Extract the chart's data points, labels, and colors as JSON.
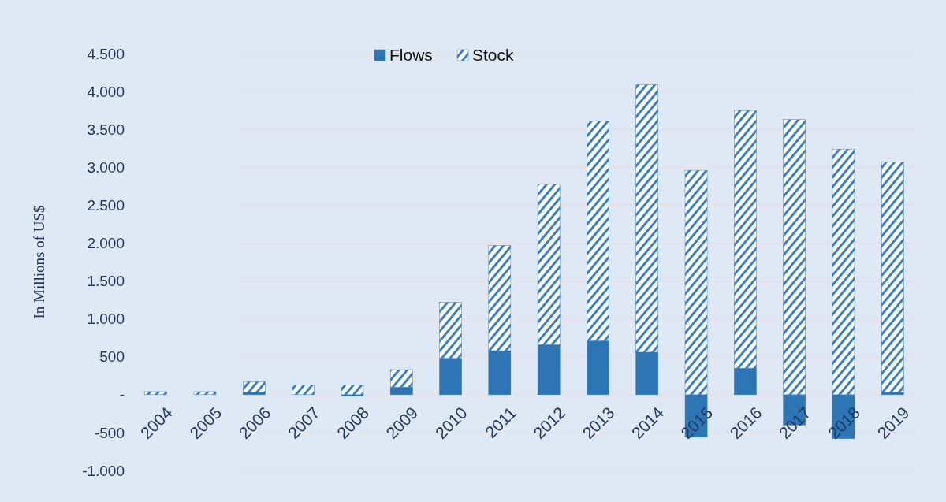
{
  "chart_data": {
    "type": "bar",
    "stacked": true,
    "ylabel": "In Millions of US$",
    "categories": [
      "2004",
      "2005",
      "2006",
      "2007",
      "2008",
      "2009",
      "2010",
      "2011",
      "2012",
      "2013",
      "2014",
      "2015",
      "2016",
      "2017",
      "2018",
      "2019"
    ],
    "series": [
      {
        "name": "Flows",
        "color": "#2e75b6",
        "values": [
          null,
          null,
          30,
          null,
          -20,
          100,
          480,
          580,
          660,
          710,
          560,
          -560,
          350,
          -400,
          -580,
          30
        ]
      },
      {
        "name": "Stock",
        "color": "#3a80c4",
        "values": [
          40,
          40,
          140,
          130,
          130,
          230,
          740,
          1390,
          2120,
          2900,
          3530,
          2960,
          3400,
          3630,
          3240,
          3040
        ]
      }
    ],
    "ylim": [
      -1000,
      4500
    ],
    "yticks": [
      {
        "value": -1000,
        "label": "-1.000"
      },
      -500,
      {
        "value": 0,
        "label": "-"
      },
      500,
      {
        "value": 1000,
        "label": "1.000"
      },
      {
        "value": 1500,
        "label": "1.500"
      },
      {
        "value": 2000,
        "label": "2.000"
      },
      {
        "value": 2500,
        "label": "2.500"
      },
      {
        "value": 3000,
        "label": "3.000"
      },
      {
        "value": 3500,
        "label": "3.500"
      },
      {
        "value": 4000,
        "label": "4.000"
      },
      {
        "value": 4500,
        "label": "4.500"
      }
    ],
    "grid": true,
    "legend": "top"
  }
}
